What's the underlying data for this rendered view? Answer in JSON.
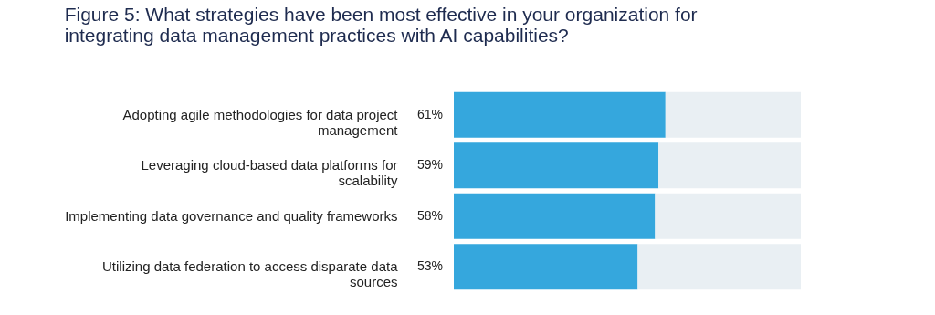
{
  "chart_data": {
    "type": "bar",
    "orientation": "horizontal",
    "stacked": true,
    "title": "Figure 5:   What strategies have been most effective in your organization for integrating data management practices with AI capabilities?",
    "categories": [
      "Adopting agile methodologies for data project management",
      "Leveraging cloud-based data platforms for scalability",
      "Implementing data governance and quality frameworks",
      "Utilizing data federation to access disparate data sources"
    ],
    "series": [
      {
        "color": "#35a7dd",
        "values": [
          61,
          59,
          58,
          53
        ],
        "value_labels": [
          "61%",
          "59%",
          "58%",
          "53%"
        ]
      },
      {
        "color": "#e9eff3",
        "values": [
          39,
          41,
          42,
          47
        ]
      }
    ],
    "xlim": [
      0,
      100
    ],
    "tick_labels": "y",
    "grid": false,
    "legend": false
  }
}
